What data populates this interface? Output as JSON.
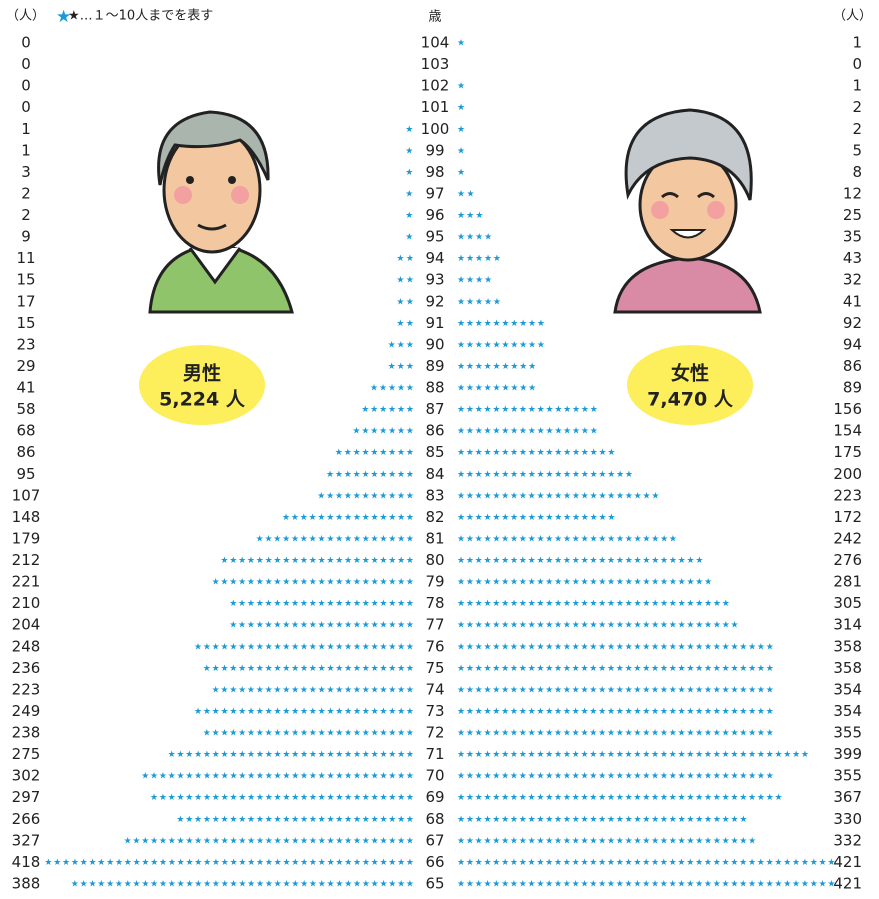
{
  "chart_data": {
    "type": "pictograph",
    "unit_left": "（人）",
    "unit_right": "（人）",
    "legend": "★…１～10人までを表す",
    "age_label": "歳",
    "categories": [
      "104",
      "103",
      "102",
      "101",
      "100",
      "99",
      "98",
      "97",
      "96",
      "95",
      "94",
      "93",
      "92",
      "91",
      "90",
      "89",
      "88",
      "87",
      "86",
      "85",
      "84",
      "83",
      "82",
      "81",
      "80",
      "79",
      "78",
      "77",
      "76",
      "75",
      "74",
      "73",
      "72",
      "71",
      "70",
      "69",
      "68",
      "67",
      "66",
      "65"
    ],
    "series": [
      {
        "name": "男性",
        "total": "5,224 人",
        "color": "#1a9ad6",
        "values": [
          0,
          0,
          0,
          0,
          1,
          1,
          3,
          2,
          2,
          9,
          11,
          15,
          17,
          15,
          23,
          29,
          41,
          58,
          68,
          86,
          95,
          107,
          148,
          179,
          212,
          221,
          210,
          204,
          248,
          236,
          223,
          249,
          238,
          275,
          302,
          297,
          266,
          327,
          418,
          388
        ]
      },
      {
        "name": "女性",
        "total": "7,470 人",
        "color": "#1a9ad6",
        "values": [
          1,
          0,
          1,
          2,
          2,
          5,
          8,
          12,
          25,
          35,
          43,
          32,
          41,
          92,
          94,
          86,
          89,
          156,
          154,
          175,
          200,
          223,
          172,
          242,
          276,
          281,
          305,
          314,
          358,
          358,
          354,
          354,
          355,
          399,
          355,
          367,
          330,
          332,
          421,
          421
        ]
      }
    ]
  }
}
